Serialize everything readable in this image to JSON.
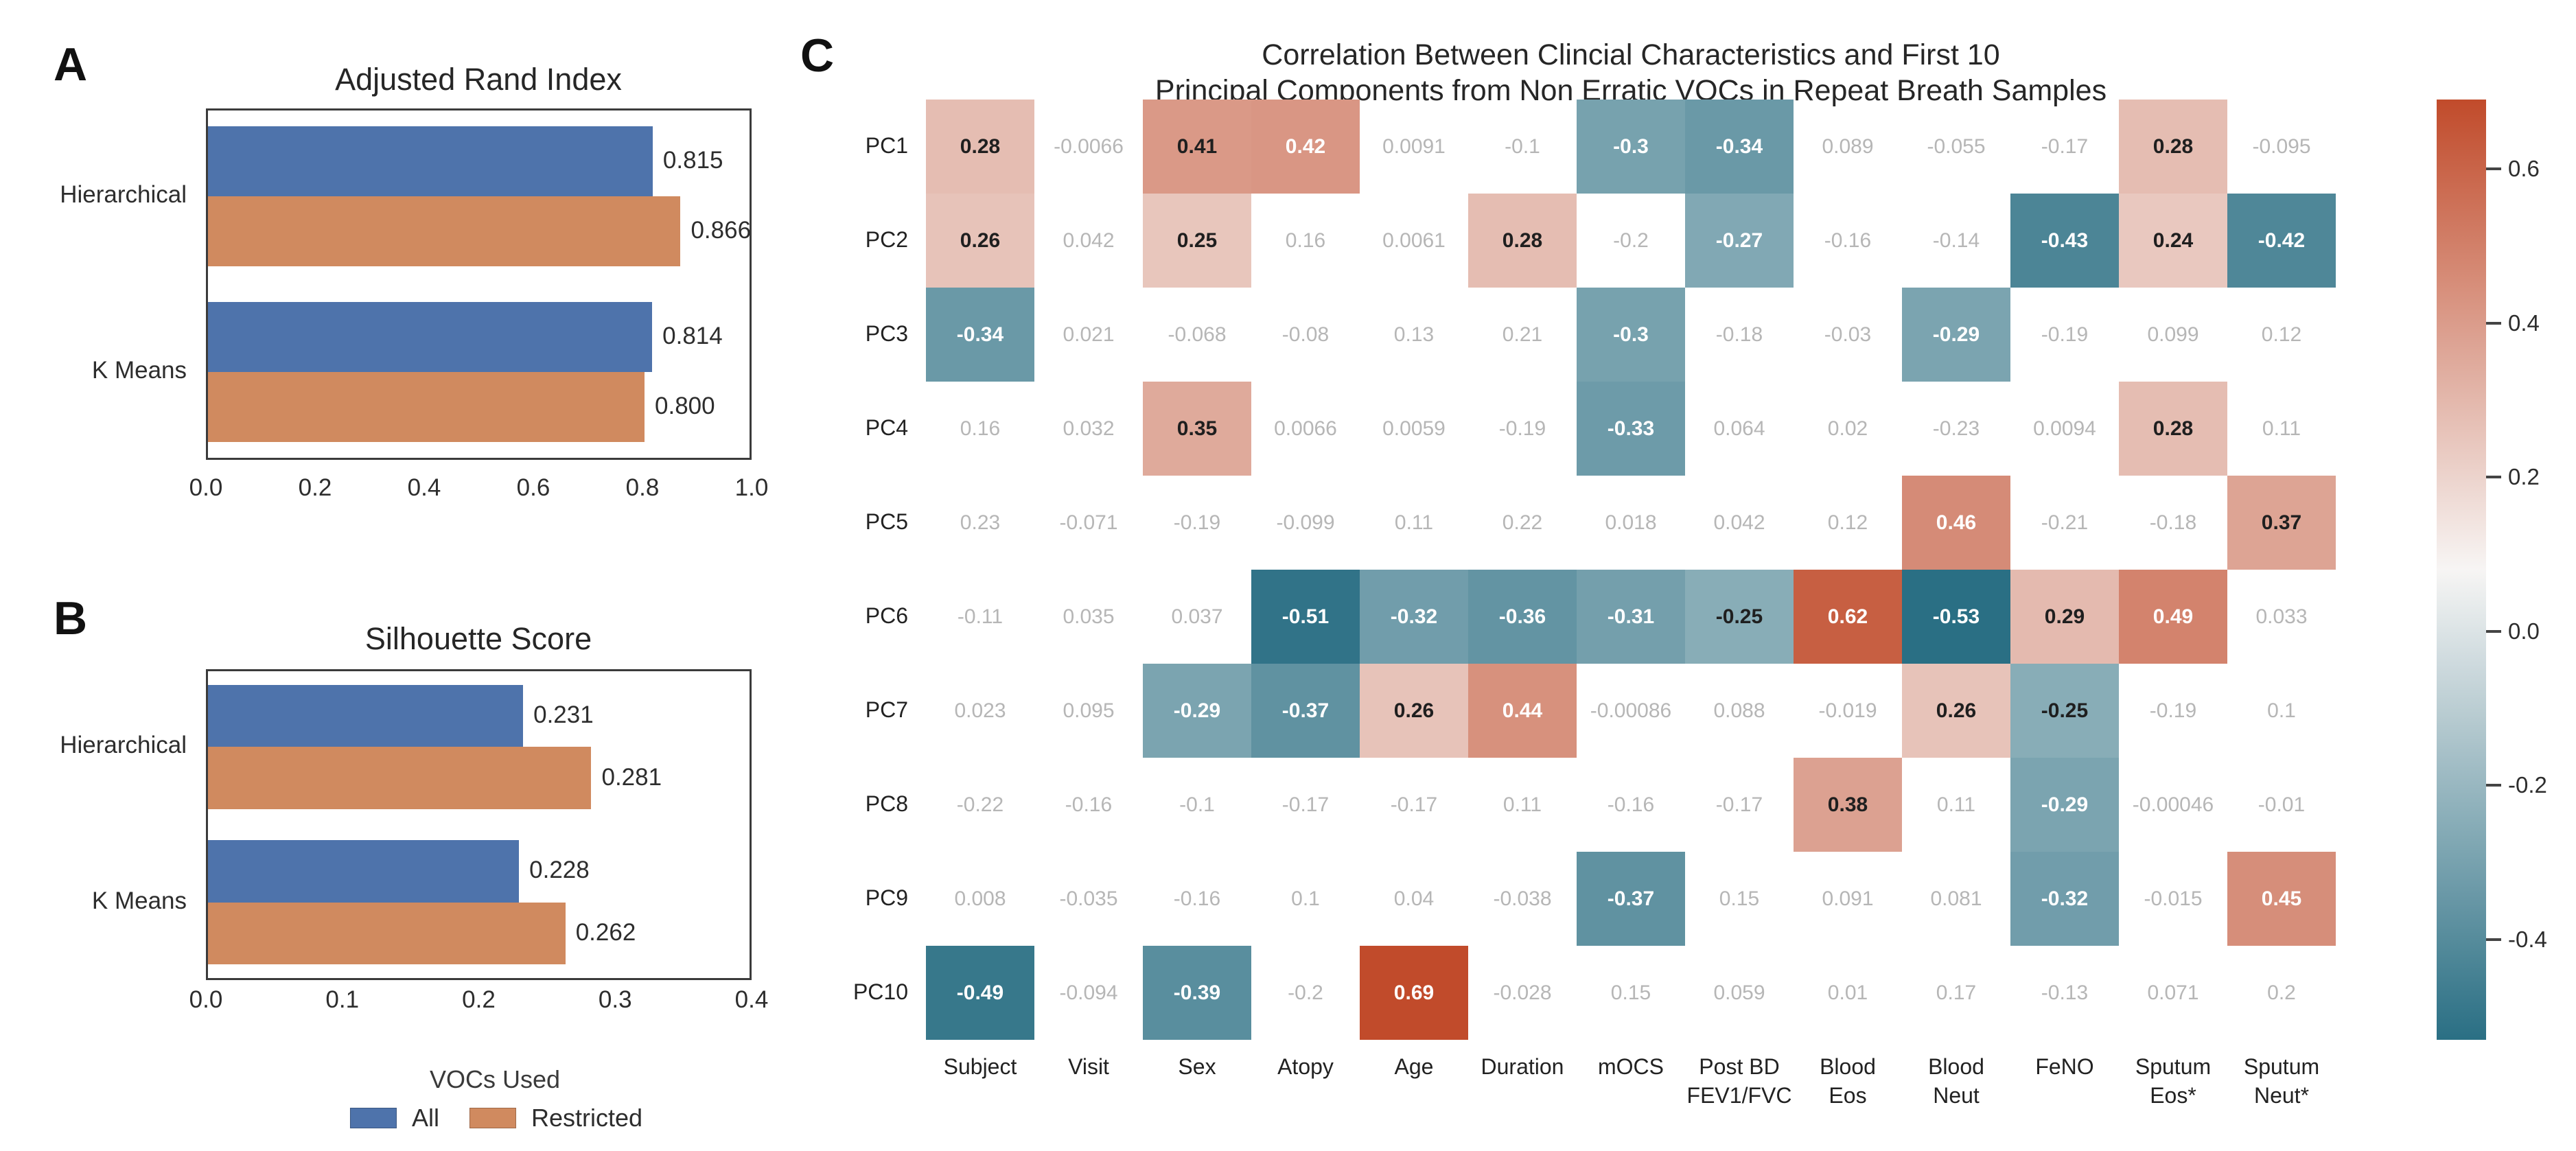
{
  "legend": {
    "title": "VOCs Used",
    "items": [
      {
        "label": "All",
        "color": "#4e73ab"
      },
      {
        "label": "Restricted",
        "color": "#d08a5f"
      }
    ]
  },
  "chart_data": [
    {
      "id": "adjusted-rand-index",
      "type": "bar",
      "orientation": "horizontal",
      "panel_label": "A",
      "title": "Adjusted Rand Index",
      "categories": [
        "Hierarchical",
        "K Means"
      ],
      "series": [
        {
          "name": "All",
          "color": "#4e73ab",
          "values": [
            0.815,
            0.814
          ],
          "value_labels": [
            "0.815",
            "0.814"
          ]
        },
        {
          "name": "Restricted",
          "color": "#d08a5f",
          "values": [
            0.866,
            0.8
          ],
          "value_labels": [
            "0.866",
            "0.800"
          ]
        }
      ],
      "xlim": [
        0,
        1.0
      ],
      "xtick_labels": [
        "0.0",
        "0.2",
        "0.4",
        "0.6",
        "0.8",
        "1.0"
      ],
      "legend_position": "below-panel-b",
      "grid": false
    },
    {
      "id": "silhouette-score",
      "type": "bar",
      "orientation": "horizontal",
      "panel_label": "B",
      "title": "Silhouette Score",
      "categories": [
        "Hierarchical",
        "K Means"
      ],
      "series": [
        {
          "name": "All",
          "color": "#4e73ab",
          "values": [
            0.231,
            0.228
          ],
          "value_labels": [
            "0.231",
            "0.228"
          ]
        },
        {
          "name": "Restricted",
          "color": "#d08a5f",
          "values": [
            0.281,
            0.262
          ],
          "value_labels": [
            "0.281",
            "0.262"
          ]
        }
      ],
      "xlim": [
        0,
        0.4
      ],
      "xtick_labels": [
        "0.0",
        "0.1",
        "0.2",
        "0.3",
        "0.4"
      ],
      "grid": false
    },
    {
      "id": "correlation-heatmap",
      "type": "heatmap",
      "panel_label": "C",
      "title_line1": "Correlation Between Clincial Characteristics and First 10",
      "title_line2": "Principal Components from Non Erratic VOCs in Repeat Breath Samples",
      "rows": [
        "PC1",
        "PC2",
        "PC3",
        "PC4",
        "PC5",
        "PC6",
        "PC7",
        "PC8",
        "PC9",
        "PC10"
      ],
      "columns": [
        [
          "Subject"
        ],
        [
          "Visit"
        ],
        [
          "Sex"
        ],
        [
          "Atopy"
        ],
        [
          "Age"
        ],
        [
          "Duration"
        ],
        [
          "mOCS"
        ],
        [
          "Post BD",
          "FEV1/FVC"
        ],
        [
          "Blood",
          "Eos"
        ],
        [
          "Blood",
          "Neut"
        ],
        [
          "FeNO"
        ],
        [
          "Sputum",
          "Eos*"
        ],
        [
          "Sputum",
          "Neut*"
        ]
      ],
      "values": [
        [
          "0.28",
          "-0.0066",
          "0.41",
          "0.42",
          "0.0091",
          "-0.1",
          "-0.3",
          "-0.34",
          "0.089",
          "-0.055",
          "-0.17",
          "0.28",
          "-0.095"
        ],
        [
          "0.26",
          "0.042",
          "0.25",
          "0.16",
          "0.0061",
          "0.28",
          "-0.2",
          "-0.27",
          "-0.16",
          "-0.14",
          "-0.43",
          "0.24",
          "-0.42"
        ],
        [
          "-0.34",
          "0.021",
          "-0.068",
          "-0.08",
          "0.13",
          "0.21",
          "-0.3",
          "-0.18",
          "-0.03",
          "-0.29",
          "-0.19",
          "0.099",
          "0.12"
        ],
        [
          "0.16",
          "0.032",
          "0.35",
          "0.0066",
          "0.0059",
          "-0.19",
          "-0.33",
          "0.064",
          "0.02",
          "-0.23",
          "0.0094",
          "0.28",
          "0.11"
        ],
        [
          "0.23",
          "-0.071",
          "-0.19",
          "-0.099",
          "0.11",
          "0.22",
          "0.018",
          "0.042",
          "0.12",
          "0.46",
          "-0.21",
          "-0.18",
          "0.37"
        ],
        [
          "-0.11",
          "0.035",
          "0.037",
          "-0.51",
          "-0.32",
          "-0.36",
          "-0.31",
          "-0.25",
          "0.62",
          "-0.53",
          "0.29",
          "0.49",
          "0.033"
        ],
        [
          "0.023",
          "0.095",
          "-0.29",
          "-0.37",
          "0.26",
          "0.44",
          "-0.00086",
          "0.088",
          "-0.019",
          "0.26",
          "-0.25",
          "-0.19",
          "0.1"
        ],
        [
          "-0.22",
          "-0.16",
          "-0.1",
          "-0.17",
          "-0.17",
          "0.11",
          "-0.16",
          "-0.17",
          "0.38",
          "0.11",
          "-0.29",
          "-0.00046",
          "-0.01"
        ],
        [
          "0.008",
          "-0.035",
          "-0.16",
          "0.1",
          "0.04",
          "-0.038",
          "-0.37",
          "0.15",
          "0.091",
          "0.081",
          "-0.32",
          "-0.015",
          "0.45"
        ],
        [
          "-0.49",
          "-0.094",
          "-0.39",
          "-0.2",
          "0.69",
          "-0.028",
          "0.15",
          "0.059",
          "0.01",
          "0.17",
          "-0.13",
          "0.071",
          "0.2"
        ]
      ],
      "colorbar": {
        "vmin": -0.53,
        "vmax": 0.69,
        "tick_labels": [
          "0.6",
          "0.4",
          "0.2",
          "0.0",
          "-0.2",
          "-0.4"
        ],
        "tick_values": [
          0.6,
          0.4,
          0.2,
          0.0,
          -0.2,
          -0.4
        ]
      },
      "palette": {
        "positive": "#c14b2b",
        "negative": "#2a6f84",
        "mid": "#f7f5f4"
      },
      "mask_below_abs": 0.24,
      "white_text_thresholds": {
        "positive": 0.42,
        "negative": -0.27
      },
      "masked_text_color": "#b6b6b6",
      "dark_text_color": "#1f1f1f",
      "white_text_color": "#ffffff"
    }
  ]
}
